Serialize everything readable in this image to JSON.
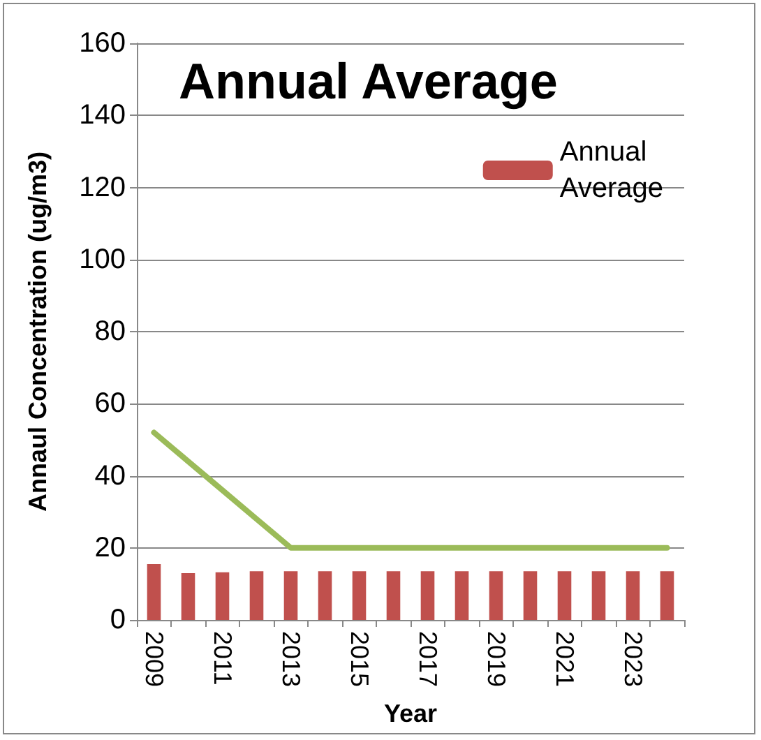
{
  "chart_data": {
    "type": "bar",
    "title": "Annual Average",
    "xlabel": "Year",
    "ylabel": "Annaul Concentration (ug/m3)",
    "categories": [
      "2009",
      null,
      "2011",
      null,
      "2013",
      null,
      "2015",
      null,
      "2017",
      null,
      "2019",
      null,
      "2021",
      null,
      "2023",
      null
    ],
    "series": [
      {
        "name": "Annual Average",
        "color": "#c0504d",
        "values": [
          15.5,
          13,
          13.2,
          13.5,
          13.5,
          13.5,
          13.5,
          13.5,
          13.5,
          13.5,
          13.5,
          13.5,
          13.5,
          13.5,
          13.5,
          13.5
        ]
      },
      {
        "type": "line",
        "color": "#9bbb59",
        "values": [
          52,
          44,
          36,
          28,
          20,
          20,
          20,
          20,
          20,
          20,
          20,
          20,
          20,
          20,
          20,
          20
        ]
      }
    ],
    "ylim": [
      0,
      160
    ],
    "yticks": [
      0,
      20,
      40,
      60,
      80,
      100,
      120,
      140,
      160
    ],
    "grid": "y",
    "legend": "top right",
    "marker": "none"
  }
}
